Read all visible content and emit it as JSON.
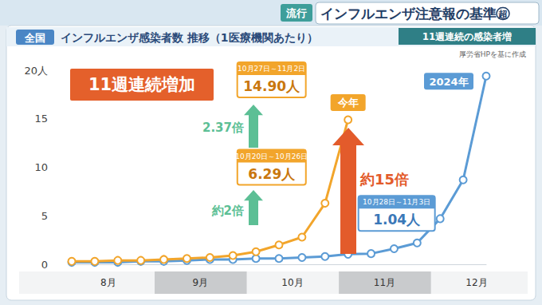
{
  "header": {
    "tag": "流行",
    "title": "インフルエンザ注意報の基準超",
    "subtitle": "11週連続の感染者増"
  },
  "chart_data": {
    "type": "line",
    "badge": "全国",
    "title": "インフルエンザ感染者数 推移（1医療機関あたり）",
    "source": "厚労省HPを基に作成",
    "headline": "11週連続増加",
    "categories": [
      null,
      null,
      "8月",
      null,
      null,
      null,
      "9月",
      null,
      null,
      null,
      "10月",
      null,
      null,
      null,
      "11月",
      null,
      null,
      null,
      "12月"
    ],
    "series": [
      {
        "name": "今年",
        "color": "#f2a52b",
        "marker": "open_circle",
        "line_style": "solid",
        "values": [
          0.3,
          0.3,
          0.4,
          0.4,
          0.5,
          0.6,
          0.7,
          0.9,
          1.3,
          2.0,
          2.8,
          6.29,
          14.9,
          null,
          null,
          null,
          null,
          null,
          null
        ],
        "callouts": [
          {
            "index": 12,
            "period": "10月27日～11月2日",
            "label": "14.90人"
          },
          {
            "index": 11,
            "period": "10月20日～10月26日",
            "label": "6.29人"
          }
        ]
      },
      {
        "name": "2024年",
        "color": "#5b9bd5",
        "marker": "open_circle",
        "line_style": "solid",
        "values": [
          0.2,
          0.2,
          0.2,
          0.3,
          0.3,
          0.4,
          0.5,
          0.5,
          0.6,
          0.6,
          0.7,
          0.8,
          1.04,
          1.1,
          1.6,
          2.2,
          4.7,
          8.7,
          19.4
        ],
        "callouts": [
          {
            "index": 12,
            "period": "10月28日～11月3日",
            "label": "1.04人"
          }
        ]
      }
    ],
    "ratios": [
      {
        "text": "約2倍",
        "color": "#5cbf95"
      },
      {
        "text": "2.37倍",
        "color": "#5cbf95"
      },
      {
        "text": "約15倍",
        "color": "#e35b2b"
      }
    ],
    "ylim": [
      0,
      20
    ],
    "yticks": [
      0,
      5,
      10,
      15,
      {
        "value": 20,
        "label": "20人"
      }
    ],
    "grid": false
  }
}
